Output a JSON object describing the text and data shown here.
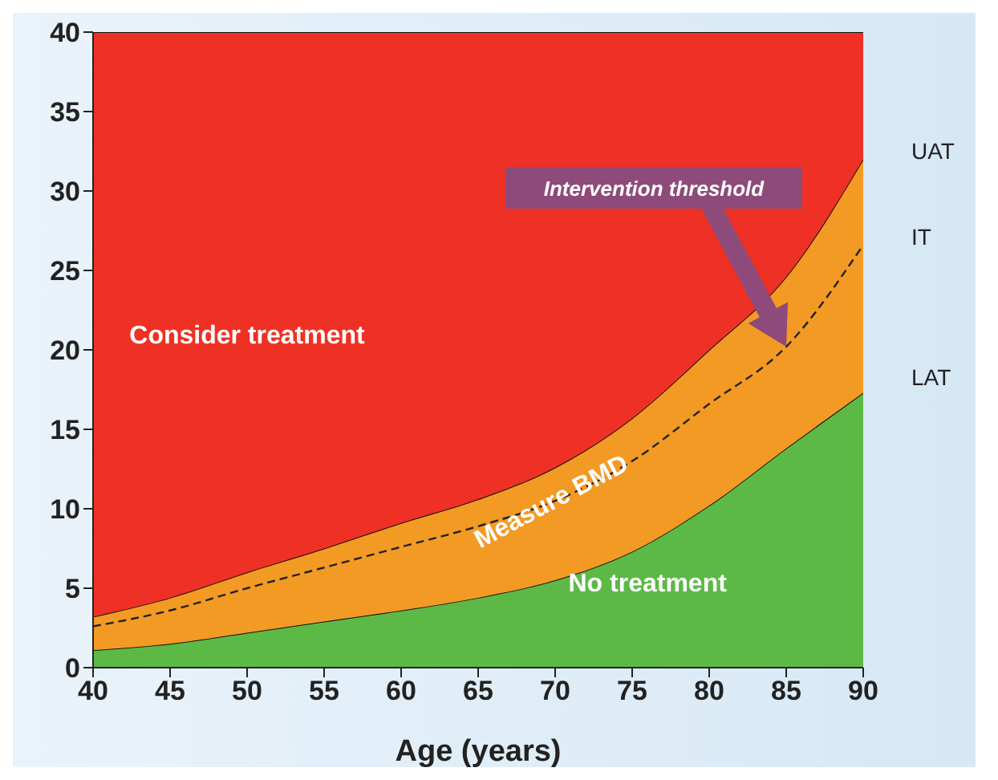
{
  "chart_data": {
    "type": "area",
    "stacked": true,
    "xlabel": "Age (years)",
    "x": [
      40,
      45,
      50,
      55,
      60,
      65,
      70,
      75,
      80,
      85,
      90
    ],
    "series": [
      {
        "name": "No treatment",
        "color": "#5db946",
        "values": [
          1.1,
          1.5,
          2.2,
          2.9,
          3.6,
          4.4,
          5.5,
          7.3,
          10.2,
          13.8,
          17.3
        ]
      },
      {
        "name": "Measure BMD",
        "color": "#f39a24",
        "values": [
          2.1,
          2.9,
          3.8,
          4.6,
          5.5,
          6.2,
          7.1,
          8.4,
          9.8,
          10.8,
          14.7
        ]
      },
      {
        "name": "Consider treatment",
        "color": "#ee3124",
        "values": [
          36.8,
          35.6,
          34,
          32.5,
          30.9,
          29.4,
          27.4,
          24.3,
          20,
          15.4,
          8
        ]
      },
      {
        "type": "line",
        "color": "#222222",
        "line_style": "dashed",
        "values": [
          2.6,
          3.6,
          5.0,
          6.3,
          7.6,
          8.9,
          10.5,
          13,
          16.6,
          20.2,
          26.6
        ]
      }
    ],
    "annotations": [
      "UAT",
      "IT",
      "LAT",
      "Intervention threshold"
    ],
    "xlim": [
      40,
      90
    ],
    "xticks": [
      40,
      45,
      50,
      55,
      60,
      65,
      70,
      75,
      80,
      85,
      90
    ],
    "ylim": [
      0,
      40
    ],
    "yticks": [
      0,
      5,
      10,
      15,
      20,
      25,
      30,
      35,
      40
    ],
    "grid": false,
    "legend": false
  }
}
